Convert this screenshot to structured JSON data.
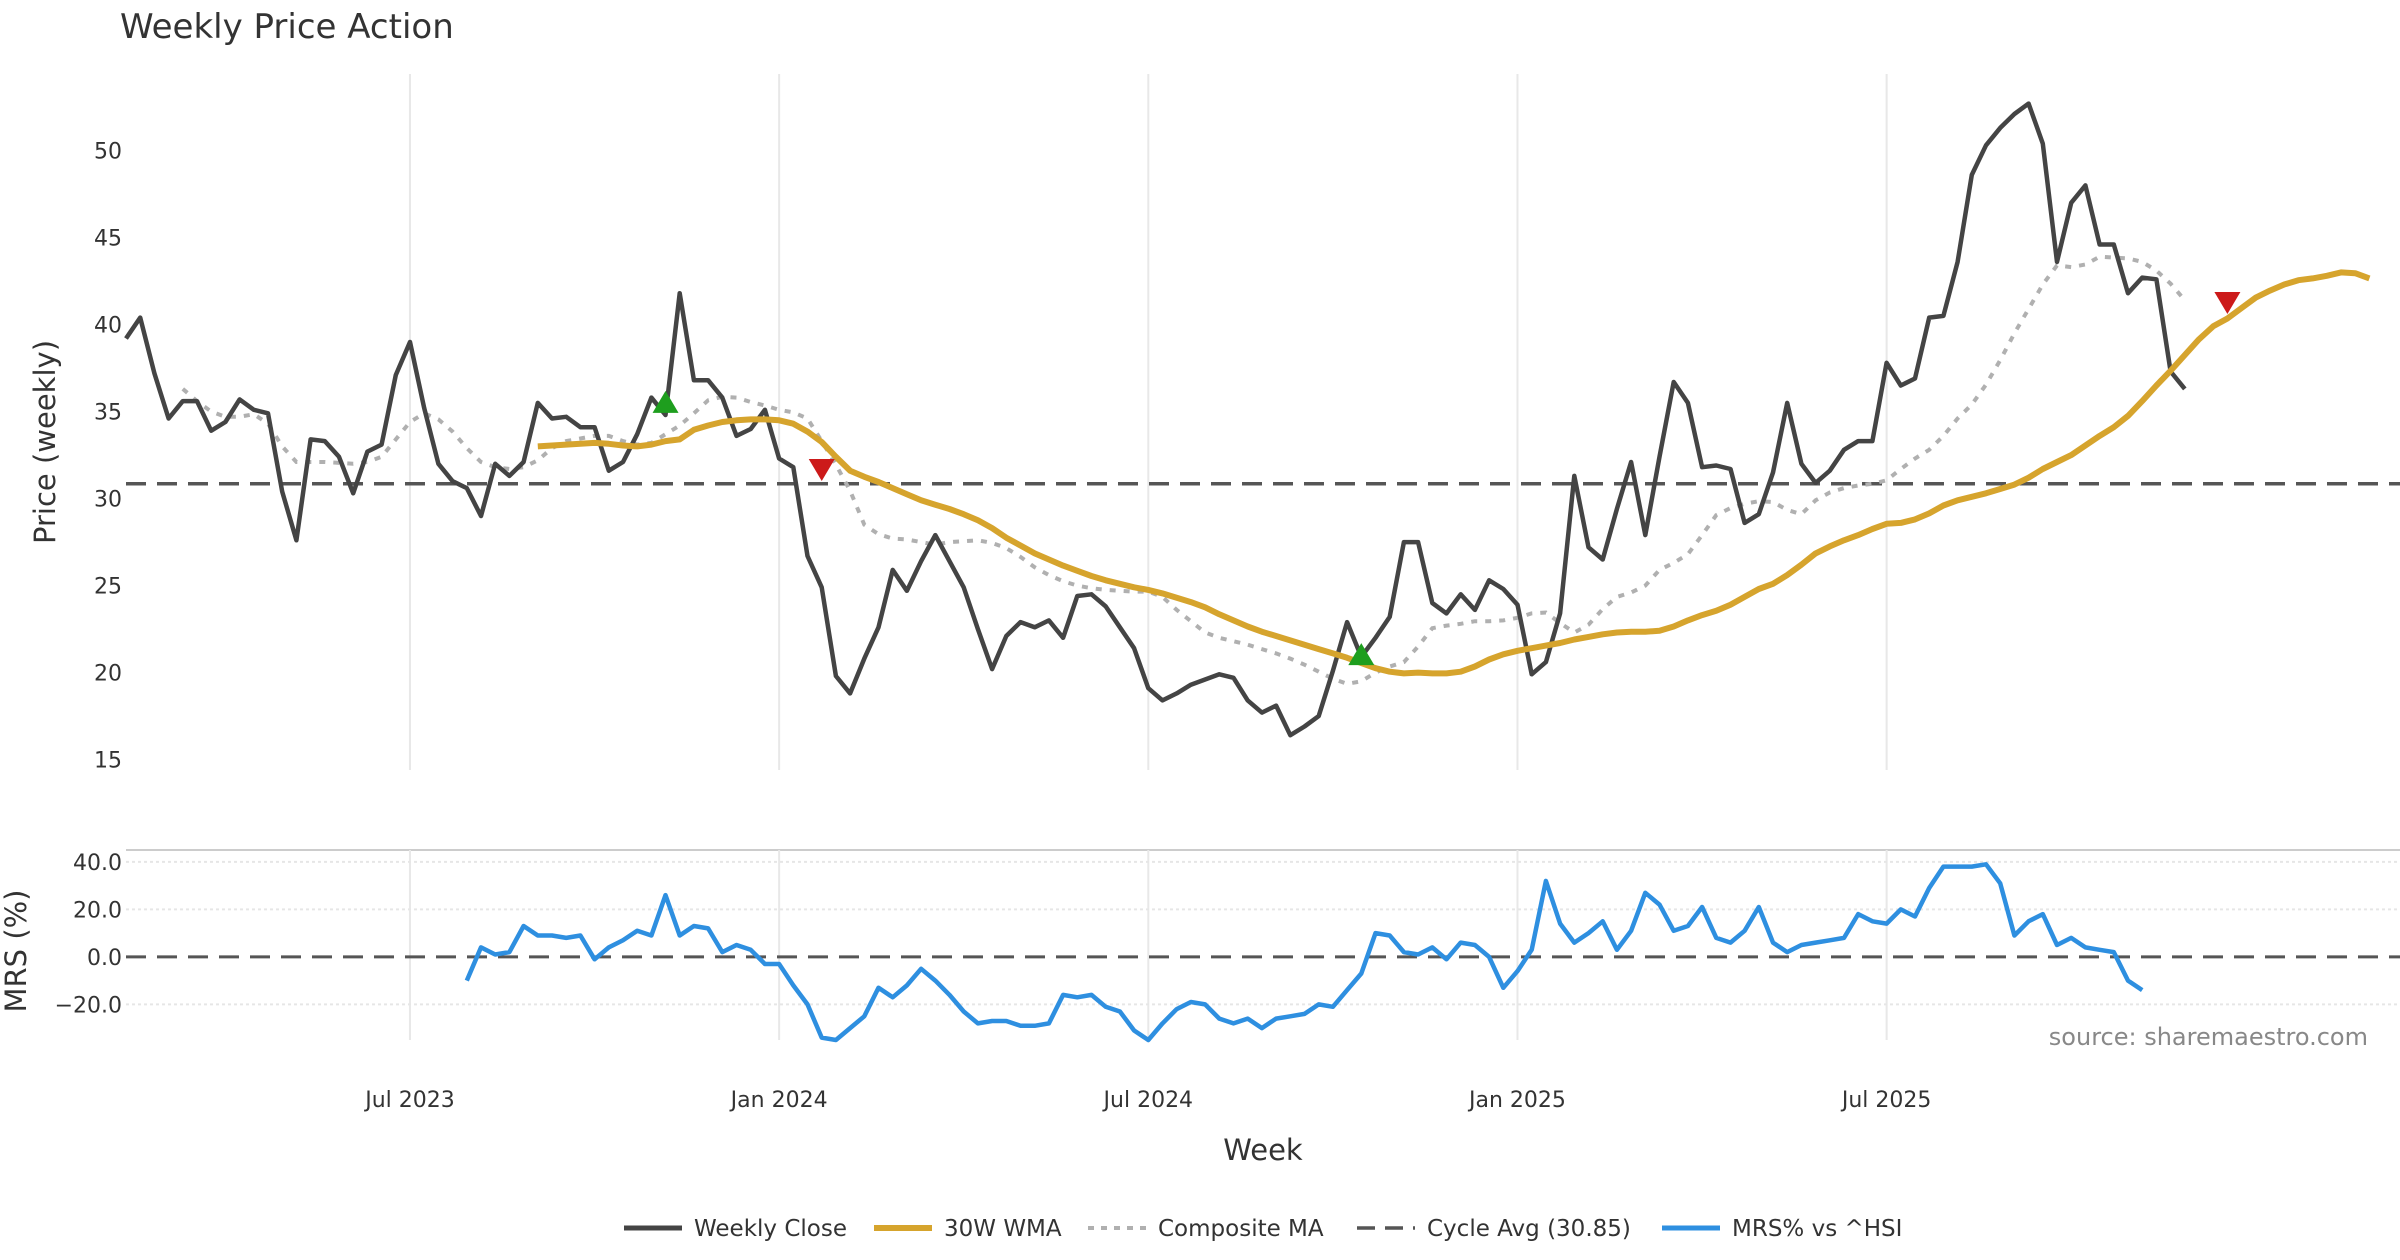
{
  "chart_data": {
    "type": "line",
    "title": "Weekly Price Action",
    "colors": {
      "close": "#444444",
      "wma": "#d6a42d",
      "composite": "#b0b0b0",
      "cycle": "#555555",
      "mrs": "#2e8fe0",
      "buy": "#1e9e1e",
      "sell": "#cc1a1a",
      "grid": "#e8e8e8"
    },
    "x_axis": {
      "label": "Week",
      "ticks": [
        {
          "week": 20,
          "label": "Jul 2023"
        },
        {
          "week": 46,
          "label": "Jan 2024"
        },
        {
          "week": 72,
          "label": "Jul 2024"
        },
        {
          "week": 98,
          "label": "Jan 2025"
        },
        {
          "week": 124,
          "label": "Jul 2025"
        }
      ],
      "range": [
        0,
        151
      ]
    },
    "price_panel": {
      "ylabel": "Price (weekly)",
      "ylim": [
        14.4,
        54.4
      ],
      "yticks": [
        15,
        20,
        25,
        30,
        35,
        40,
        45,
        50
      ],
      "series": {
        "close": {
          "name": "Weekly Close",
          "start_week": 0,
          "values": [
            39.2,
            40.4,
            37.2,
            34.6,
            35.6,
            35.6,
            33.9,
            34.4,
            35.7,
            35.1,
            34.9,
            30.4,
            27.6,
            33.4,
            33.3,
            32.4,
            30.3,
            32.7,
            33.1,
            37.1,
            39.0,
            35.2,
            32.0,
            31.0,
            30.6,
            29.0,
            32.0,
            31.3,
            32.1,
            35.5,
            34.6,
            34.7,
            34.1,
            34.1,
            31.6,
            32.1,
            33.7,
            35.8,
            34.8,
            41.8,
            36.8,
            36.8,
            35.8,
            33.6,
            34.0,
            35.1,
            32.3,
            31.8,
            26.7,
            24.9,
            19.8,
            18.8,
            20.8,
            22.6,
            25.9,
            24.7,
            26.4,
            27.9,
            26.4,
            24.9,
            22.5,
            20.2,
            22.1,
            22.9,
            22.6,
            23.0,
            22.0,
            24.4,
            24.5,
            23.8,
            22.6,
            21.4,
            19.1,
            18.4,
            18.8,
            19.3,
            19.6,
            19.9,
            19.7,
            18.4,
            17.7,
            18.1,
            16.4,
            16.9,
            17.5,
            20.1,
            22.9,
            20.9,
            22.0,
            23.2,
            27.5,
            27.5,
            24.0,
            23.4,
            24.5,
            23.6,
            25.3,
            24.8,
            23.9,
            19.9,
            20.6,
            23.4,
            31.3,
            27.2,
            26.5,
            29.4,
            32.1,
            27.9,
            32.4,
            36.7,
            35.5,
            31.8,
            31.9,
            31.7,
            28.6,
            29.1,
            31.5,
            35.5,
            32.0,
            30.9,
            31.6,
            32.8,
            33.3,
            33.3,
            37.8,
            36.5,
            36.9,
            40.4,
            40.5,
            43.6,
            48.6,
            50.3,
            51.3,
            52.1,
            52.7,
            50.4,
            43.6,
            47.0,
            48.0,
            44.6,
            44.6,
            41.8,
            42.7,
            42.6,
            37.3,
            36.3
          ]
        },
        "wma": {
          "name": "30W WMA",
          "start_week": 29,
          "values": [
            33.0,
            33.05,
            33.1,
            33.15,
            33.2,
            33.15,
            33.05,
            33.0,
            33.1,
            33.3,
            33.4,
            33.95,
            34.2,
            34.4,
            34.5,
            34.55,
            34.55,
            34.5,
            34.3,
            33.85,
            33.25,
            32.4,
            31.6,
            31.25,
            30.95,
            30.6,
            30.25,
            29.9,
            29.65,
            29.4,
            29.1,
            28.75,
            28.3,
            27.75,
            27.3,
            26.85,
            26.5,
            26.15,
            25.85,
            25.55,
            25.3,
            25.1,
            24.9,
            24.75,
            24.55,
            24.3,
            24.05,
            23.75,
            23.35,
            23.0,
            22.65,
            22.35,
            22.1,
            21.85,
            21.6,
            21.35,
            21.1,
            20.85,
            20.55,
            20.25,
            20.05,
            19.95,
            20.0,
            19.95,
            19.95,
            20.05,
            20.35,
            20.75,
            21.05,
            21.25,
            21.4,
            21.55,
            21.7,
            21.9,
            22.05,
            22.2,
            22.3,
            22.35,
            22.35,
            22.4,
            22.65,
            23.0,
            23.3,
            23.55,
            23.9,
            24.35,
            24.8,
            25.1,
            25.6,
            26.2,
            26.85,
            27.25,
            27.6,
            27.9,
            28.25,
            28.55,
            28.6,
            28.8,
            29.15,
            29.6,
            29.9,
            30.1,
            30.3,
            30.55,
            30.8,
            31.2,
            31.7,
            32.1,
            32.5,
            33.05,
            33.6,
            34.1,
            34.75,
            35.6,
            36.5,
            37.35,
            38.25,
            39.15,
            39.9,
            40.35,
            40.95,
            41.55,
            41.95,
            42.3,
            42.55,
            42.65,
            42.8,
            43.0,
            42.95,
            42.65
          ]
        },
        "composite": {
          "name": "Composite MA",
          "start_week": 4,
          "values": [
            36.3,
            35.6,
            35.0,
            34.7,
            34.7,
            34.85,
            34.3,
            33.0,
            32.1,
            32.1,
            32.1,
            32.05,
            32.0,
            32.1,
            32.4,
            33.4,
            34.4,
            34.9,
            34.55,
            33.85,
            32.9,
            32.1,
            31.8,
            31.7,
            31.8,
            32.2,
            32.9,
            33.3,
            33.45,
            33.6,
            33.6,
            33.3,
            33.1,
            33.2,
            33.7,
            34.2,
            34.9,
            35.65,
            35.85,
            35.8,
            35.55,
            35.35,
            35.1,
            34.95,
            34.6,
            33.3,
            31.95,
            30.45,
            28.5,
            27.95,
            27.7,
            27.65,
            27.5,
            27.35,
            27.5,
            27.55,
            27.6,
            27.45,
            27.15,
            26.65,
            26.05,
            25.6,
            25.25,
            25.0,
            24.85,
            24.75,
            24.7,
            24.65,
            24.65,
            24.35,
            23.6,
            22.95,
            22.3,
            22.0,
            21.8,
            21.6,
            21.35,
            21.1,
            20.8,
            20.45,
            20.05,
            19.65,
            19.35,
            19.5,
            20.0,
            20.35,
            20.6,
            21.5,
            22.55,
            22.7,
            22.8,
            22.95,
            22.95,
            23.0,
            23.15,
            23.4,
            23.45,
            22.85,
            22.3,
            22.75,
            23.65,
            24.35,
            24.6,
            25.0,
            25.9,
            26.3,
            26.8,
            27.9,
            29.05,
            29.45,
            29.7,
            29.85,
            29.8,
            29.35,
            29.1,
            29.9,
            30.35,
            30.6,
            30.75,
            30.85,
            31.05,
            31.7,
            32.3,
            32.8,
            33.6,
            34.6,
            35.4,
            36.55,
            37.95,
            39.5,
            40.9,
            42.3,
            43.4,
            43.3,
            43.45,
            43.9,
            43.85,
            43.8,
            43.6,
            43.1,
            42.35,
            41.4
          ]
        },
        "cycle_avg": {
          "name": "Cycle Avg (30.85)",
          "value": 30.85
        },
        "buy_signals": [
          {
            "week": 38,
            "price": 35.5
          },
          {
            "week": 87,
            "price": 21.0
          }
        ],
        "sell_signals": [
          {
            "week": 49,
            "price": 31.7
          },
          {
            "week": 148,
            "price": 41.3
          }
        ]
      }
    },
    "mrs_panel": {
      "ylabel": "MRS (%)",
      "ylim": [
        -35,
        45
      ],
      "yticks": [
        40,
        20,
        0,
        -20
      ],
      "ytick_labels": [
        "40.0",
        "20.0",
        "0.0",
        "−20.0"
      ],
      "zero_line": 0,
      "series": {
        "mrs": {
          "name": "MRS% vs ^HSI",
          "start_week": 24,
          "values": [
            -10,
            4,
            1,
            2,
            13,
            9,
            9,
            8,
            9,
            -1,
            4,
            7,
            11,
            9,
            26,
            9,
            13,
            12,
            2,
            5,
            3,
            -3,
            -3,
            -12,
            -20,
            -34,
            -35,
            -30,
            -25,
            -13,
            -17,
            -12,
            -5,
            -10,
            -16,
            -23,
            -28,
            -27,
            -27,
            -29,
            -29,
            -28,
            -16,
            -17,
            -16,
            -21,
            -23,
            -31,
            -35,
            -28,
            -22,
            -19,
            -20,
            -26,
            -28,
            -26,
            -30,
            -26,
            -25,
            -24,
            -20,
            -21,
            -14,
            -7,
            10,
            9,
            2,
            1,
            4,
            -1,
            6,
            5,
            0,
            -13,
            -6,
            3,
            32,
            14,
            6,
            10,
            15,
            3,
            11,
            27,
            22,
            11,
            13,
            21,
            8,
            6,
            11,
            21,
            6,
            2,
            5,
            6,
            7,
            8,
            18,
            15,
            14,
            20,
            17,
            29,
            38,
            38,
            38,
            39,
            31,
            9,
            15,
            18,
            5,
            8,
            4,
            3,
            2,
            -10,
            -14
          ]
        }
      }
    },
    "legend": [
      "Weekly Close",
      "30W WMA",
      "Composite MA",
      "Cycle Avg (30.85)",
      "MRS% vs ^HSI"
    ],
    "annotation": "source: sharemaestro.com"
  }
}
